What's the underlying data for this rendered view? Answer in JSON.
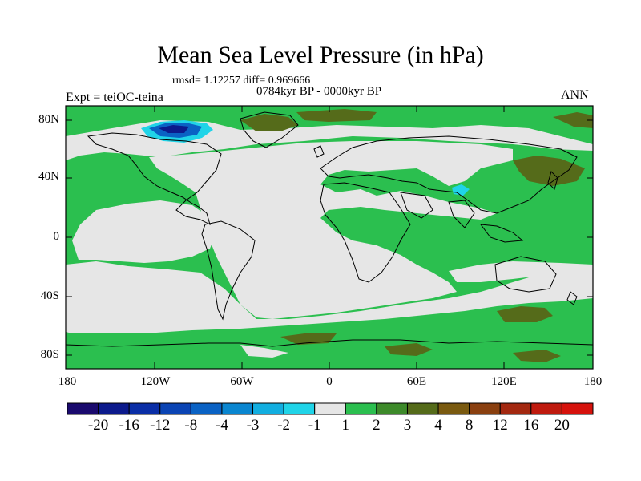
{
  "title": "Mean Sea Level Pressure (in hPa)",
  "stats": "rmsd= 1.12257 diff= 0.969666",
  "period": "0784kyr BP - 0000kyr BP",
  "experiment": "Expt = teiOC-teina",
  "season": "ANN",
  "lat_ticks": [
    "80N",
    "40N",
    "0",
    "40S",
    "80S"
  ],
  "lon_ticks": [
    "180",
    "120W",
    "60W",
    "0",
    "60E",
    "120E",
    "180"
  ],
  "colorbar": {
    "labels": [
      "-20",
      "-16",
      "-12",
      "-8",
      "-4",
      "-3",
      "-2",
      "-1",
      "1",
      "2",
      "3",
      "4",
      "8",
      "12",
      "16",
      "20"
    ],
    "colors": [
      "#1a0a6e",
      "#0c1a8c",
      "#0a2ea6",
      "#0b44b4",
      "#0a62c4",
      "#0a86d0",
      "#12aee0",
      "#20d4e8",
      "#e6e6e6",
      "#2bbf4f",
      "#3d8a2a",
      "#556b1a",
      "#7a5a10",
      "#8a4010",
      "#a32810",
      "#bf1a0e",
      "#d6120c"
    ]
  },
  "colors": {
    "neutral": "#e6e6e6",
    "pos_weak": "#2bbf4f",
    "pos_mid": "#556b1a",
    "neg": "#0c1a8c",
    "neg_light": "#20d4e8"
  }
}
